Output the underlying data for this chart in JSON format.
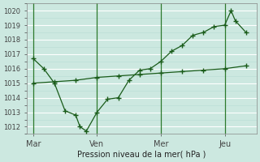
{
  "xlabel": "Pression niveau de la mer( hPa )",
  "background_color": "#cce8e0",
  "grid_color": "#b0d8cc",
  "line_color": "#1a5c1a",
  "ylim": [
    1011.5,
    1020.5
  ],
  "yticks": [
    1012,
    1013,
    1014,
    1015,
    1016,
    1017,
    1018,
    1019,
    1020
  ],
  "xtick_labels": [
    "Mar",
    "Ven",
    "Mer",
    "Jeu"
  ],
  "xtick_positions": [
    0,
    3,
    6,
    9
  ],
  "vline_positions": [
    0,
    3,
    6,
    9
  ],
  "series1_x": [
    0,
    0.5,
    1,
    1.5,
    2,
    2.2,
    2.5,
    3,
    3.5,
    4,
    4.5,
    5,
    5.5,
    6,
    6.5,
    7,
    7.5,
    8,
    8.5,
    9,
    9.3,
    9.5,
    10
  ],
  "series1_y": [
    1016.7,
    1016.0,
    1015.0,
    1013.1,
    1012.8,
    1012.0,
    1011.7,
    1013.0,
    1013.9,
    1014.0,
    1015.2,
    1015.9,
    1016.0,
    1016.5,
    1017.2,
    1017.6,
    1018.3,
    1018.5,
    1018.9,
    1019.0,
    1020.0,
    1019.3,
    1018.5
  ],
  "series2_x": [
    0,
    1,
    2,
    3,
    4,
    5,
    6,
    7,
    8,
    9,
    10
  ],
  "series2_y": [
    1015.0,
    1015.1,
    1015.2,
    1015.4,
    1015.5,
    1015.6,
    1015.7,
    1015.8,
    1015.9,
    1016.0,
    1016.2
  ],
  "xlim": [
    -0.3,
    10.5
  ]
}
